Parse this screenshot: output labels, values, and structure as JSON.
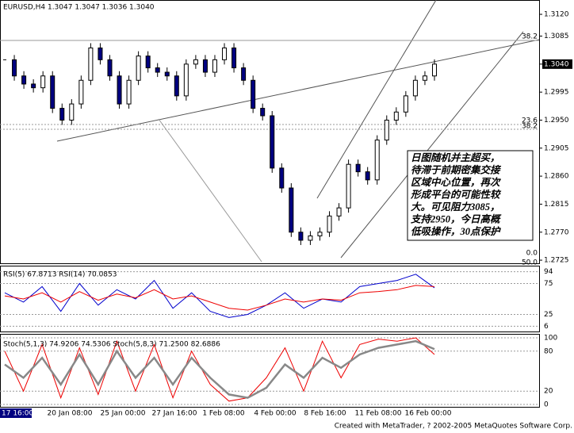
{
  "chart_data": [
    {
      "type": "candlestick",
      "title": "EURUSD,H4 1.3047 1.3047 1.3036 1.3040",
      "values": [
        1.3047,
        1.3021,
        1.3008,
        1.3002,
        1.3021,
        1.2969,
        1.295,
        1.2976,
        1.3014,
        1.3066,
        1.3047,
        1.3021,
        1.2976,
        1.3014,
        1.3053,
        1.3034,
        1.3027,
        1.3021,
        1.2989,
        1.304,
        1.3047,
        1.3027,
        1.3047,
        1.3066,
        1.3034,
        1.3014,
        1.2969,
        1.2957,
        1.2873,
        1.2841,
        1.277,
        1.2757,
        1.2764,
        1.277,
        1.2796,
        1.2809,
        1.2879,
        1.2867,
        1.2854,
        1.2918,
        1.295,
        1.2963,
        1.2989,
        1.3014,
        1.3021,
        1.304
      ],
      "ylim": [
        1.272,
        1.3143
      ],
      "yticks": [
        {
          "value": 1.312,
          "label": "1.3120"
        },
        {
          "value": 1.3085,
          "label": "1.3085"
        },
        {
          "value": 1.304,
          "label": "1.3040"
        },
        {
          "value": 1.2995,
          "label": "1.2995"
        },
        {
          "value": 1.295,
          "label": "1.2950"
        },
        {
          "value": 1.2905,
          "label": "1.2905"
        },
        {
          "value": 1.286,
          "label": "1.2860"
        },
        {
          "value": 1.2815,
          "label": "1.2815"
        },
        {
          "value": 1.277,
          "label": "1.2770"
        },
        {
          "value": 1.2725,
          "label": "1.2725"
        }
      ],
      "fib_labels": [
        "38.2",
        "23.6",
        "38.2",
        "0.0",
        "50.0"
      ],
      "annotation": [
        "日图随机并主超买，",
        "待滞于前期密集交接",
        "区域中心位置，再次",
        "形成平台的可能性较",
        "大。可见阻力3085，",
        "支持2950，今日高概",
        "低吸操作，30点保护"
      ],
      "x_labels": [
        "17 16:00",
        "20 Jan 08:00",
        "25 Jan 00:00",
        "27 Jan 16:00",
        "1 Feb 08:00",
        "4 Feb 00:00",
        "8 Feb 16:00",
        "11 Feb 08:00",
        "16 Feb 00:00"
      ]
    },
    {
      "type": "line",
      "title": "RSI(5) 67.8713 RSI(14) 70.0853",
      "ylim": [
        0,
        100
      ],
      "yticks": [
        6,
        25,
        75,
        94
      ],
      "series": [
        {
          "color": "#0000cc",
          "values": [
            60,
            45,
            70,
            30,
            75,
            40,
            65,
            50,
            80,
            35,
            60,
            30,
            20,
            25,
            40,
            60,
            35,
            50,
            45,
            70,
            75,
            80,
            90,
            68
          ]
        },
        {
          "color": "#ee0000",
          "values": [
            55,
            50,
            60,
            45,
            62,
            48,
            58,
            52,
            65,
            50,
            55,
            45,
            35,
            32,
            40,
            50,
            45,
            50,
            48,
            60,
            62,
            65,
            72,
            70
          ]
        }
      ]
    },
    {
      "type": "line",
      "title": "Stoch(5,1,3) 74.9206 74.5306 Stoch(5,8,3) 71.2500 82.6886",
      "ylim": [
        0,
        100
      ],
      "yticks": [
        0,
        20,
        80,
        100
      ],
      "series": [
        {
          "color": "#ee0000",
          "values": [
            80,
            20,
            90,
            10,
            85,
            15,
            95,
            20,
            90,
            10,
            80,
            30,
            5,
            10,
            40,
            85,
            20,
            95,
            40,
            90,
            98,
            95,
            100,
            75
          ]
        },
        {
          "color": "#888888",
          "values": [
            60,
            40,
            70,
            30,
            75,
            30,
            80,
            40,
            70,
            30,
            70,
            40,
            15,
            10,
            25,
            60,
            40,
            70,
            55,
            75,
            85,
            90,
            95,
            83
          ]
        }
      ]
    }
  ],
  "footer": "Created with MetaTrader, ? 2002-2005 MetaQuotes Software Corp."
}
